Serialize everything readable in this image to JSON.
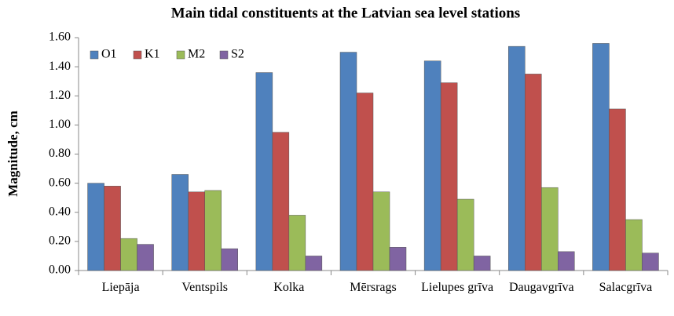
{
  "chart_data": {
    "type": "bar",
    "title": "Main tidal constituents at the Latvian sea level stations",
    "y_label": "Magnitude, cm",
    "categories": [
      "Liepāja",
      "Ventspils",
      "Kolka",
      "Mērsrags",
      "Lielupes grīva",
      "Daugavgrīva",
      "Salacgrīva"
    ],
    "series": [
      {
        "name": "O1",
        "color": "#4f81bd",
        "values": [
          0.6,
          0.66,
          1.36,
          1.5,
          1.44,
          1.54,
          1.56
        ]
      },
      {
        "name": "K1",
        "color": "#c0504d",
        "values": [
          0.58,
          0.54,
          0.95,
          1.22,
          1.29,
          1.35,
          1.11
        ]
      },
      {
        "name": "M2",
        "color": "#9bbb59",
        "values": [
          0.22,
          0.55,
          0.38,
          0.54,
          0.49,
          0.57,
          0.35
        ]
      },
      {
        "name": "S2",
        "color": "#8064a2",
        "values": [
          0.18,
          0.15,
          0.1,
          0.16,
          0.1,
          0.13,
          0.12
        ]
      }
    ],
    "ylim": [
      0,
      1.6
    ],
    "yticks": [
      {
        "value": 0,
        "label": "0.00"
      },
      {
        "value": 0.2,
        "label": "0.20"
      },
      {
        "value": 0.4,
        "label": "0.40"
      },
      {
        "value": 0.6,
        "label": "0.60"
      },
      {
        "value": 0.8,
        "label": "0.80"
      },
      {
        "value": 1.0,
        "label": "1.00"
      },
      {
        "value": 1.2,
        "label": "1.20"
      },
      {
        "value": 1.4,
        "label": "1.40"
      },
      {
        "value": 1.6,
        "label": "1.60"
      }
    ],
    "grid": false,
    "legend": "upper left"
  }
}
